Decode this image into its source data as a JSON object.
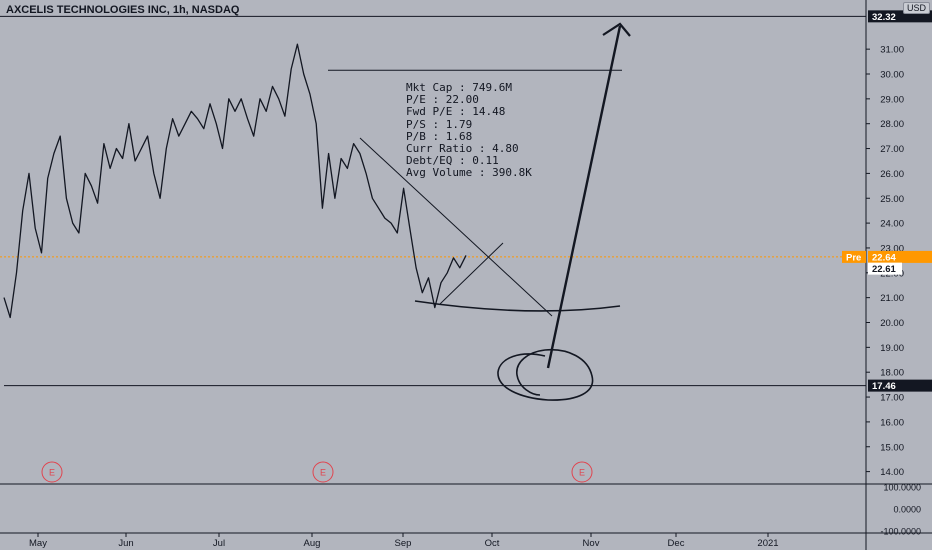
{
  "header": {
    "title": "AXCELIS TECHNOLOGIES INC, 1h, NASDAQ",
    "currency": "USD"
  },
  "stats": [
    "Mkt Cap : 749.6M",
    "P/E : 22.00",
    "Fwd P/E : 14.48",
    "P/S : 1.79",
    "P/B : 1.68",
    "Curr Ratio : 4.80",
    "Debt/EQ : 0.11",
    "Avg Volume : 390.8K"
  ],
  "chart_data": {
    "type": "line",
    "title": "AXCELIS TECHNOLOGIES INC, 1h, NASDAQ",
    "price_axis": {
      "ylim": [
        13.5,
        32.5
      ],
      "ticks": [
        "14.00",
        "15.00",
        "16.00",
        "17.00",
        "18.00",
        "19.00",
        "20.00",
        "21.00",
        "22.00",
        "23.00",
        "24.00",
        "25.00",
        "26.00",
        "27.00",
        "28.00",
        "29.00",
        "30.00",
        "31.00"
      ]
    },
    "time_axis": {
      "ticks": [
        "May",
        "Jun",
        "Jul",
        "Aug",
        "Sep",
        "Oct",
        "Nov",
        "Dec",
        "2021"
      ]
    },
    "price_series": {
      "name": "",
      "values": [
        21.0,
        20.2,
        22.0,
        24.5,
        26.0,
        23.8,
        22.8,
        25.8,
        26.8,
        27.5,
        25.0,
        24.0,
        23.6,
        26.0,
        25.5,
        24.8,
        27.2,
        26.2,
        27.0,
        26.6,
        28.0,
        26.5,
        27.0,
        27.5,
        26.0,
        25.0,
        27.0,
        28.2,
        27.5,
        28.0,
        28.5,
        28.2,
        27.8,
        28.8,
        28.0,
        27.0,
        29.0,
        28.5,
        29.0,
        28.2,
        27.5,
        29.0,
        28.5,
        29.5,
        29.0,
        28.3,
        30.2,
        31.2,
        30.0,
        29.2,
        28.0,
        24.6,
        26.8,
        25.0,
        26.6,
        26.2,
        27.2,
        26.8,
        26.0,
        25.0,
        24.6,
        24.2,
        24.0,
        23.6,
        25.4,
        23.8,
        22.2,
        21.2,
        21.8,
        20.6,
        21.6,
        22.0,
        22.6,
        22.2,
        22.7
      ]
    },
    "horizontal_levels": [
      32.32,
      30.15,
      17.46
    ],
    "price_labels": [
      {
        "text": "32.32",
        "value": 32.32,
        "bg": "#131722",
        "fg": "#ffffff"
      },
      {
        "text": "Pre",
        "value": 22.64,
        "bg": "#ff9800",
        "fg": "#ffffff"
      },
      {
        "text": "22.64",
        "value": 22.64,
        "bg": "#ff9800",
        "fg": "#ffffff"
      },
      {
        "text": "22.61",
        "value": 22.61,
        "bg": "#ffffff",
        "fg": "#131722"
      },
      {
        "text": "17.46",
        "value": 17.46,
        "bg": "#131722",
        "fg": "#ffffff"
      }
    ],
    "current_price_line": 22.64,
    "earnings_markers": [
      "E",
      "E",
      "E"
    ],
    "indicator_pane": {
      "ticks": [
        "100.0000",
        "0.0000",
        "-100.0000"
      ]
    },
    "colors": {
      "background": "#b2b5be",
      "price": "#131722",
      "current": "#ff9800",
      "earnings": "#e0454f"
    },
    "grid": false
  }
}
